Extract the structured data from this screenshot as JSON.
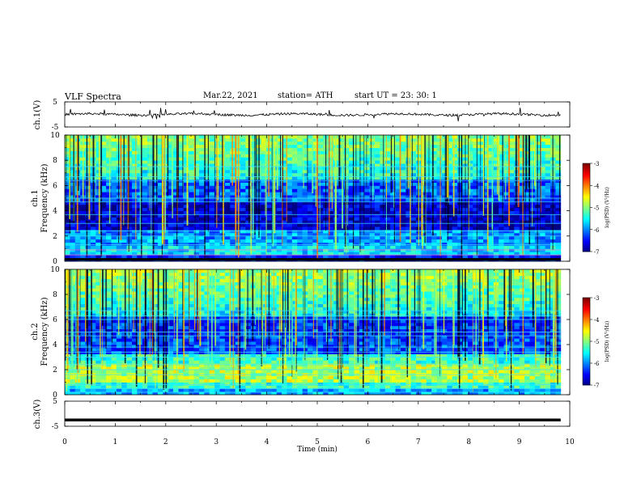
{
  "header": {
    "title": "VLF  Spectra",
    "date": "Mar.22, 2021",
    "station": "station= ATH",
    "start": "start  UT  =    23: 30: 1"
  },
  "chart_data": [
    {
      "type": "line",
      "name": "ch1-waveform",
      "ylabel": "ch.1(V)",
      "ylim": [
        -5,
        5
      ],
      "yticks": [
        "5",
        "-5"
      ],
      "xlim": [
        0,
        10
      ],
      "description_level": "signal near 0 V with spiky noise"
    },
    {
      "type": "heatmap",
      "name": "ch1-spectrogram",
      "ylabel": "ch.1\nFrequency  (kHz)",
      "ylim": [
        0,
        10
      ],
      "yticks": [
        "0",
        "2",
        "4",
        "6",
        "8",
        "10"
      ],
      "xlim": [
        0,
        10
      ],
      "colorbar": {
        "label": "log(PSD) (V²/Hz)",
        "range": [
          -7,
          -3
        ],
        "ticks": [
          "-3",
          "-4",
          "-5",
          "-6",
          "-7"
        ]
      }
    },
    {
      "type": "heatmap",
      "name": "ch2-spectrogram",
      "ylabel": "ch.2\nFrequency  (kHz)",
      "ylim": [
        0,
        10
      ],
      "yticks": [
        "0",
        "2",
        "4",
        "6",
        "8",
        "10"
      ],
      "xlim": [
        0,
        10
      ],
      "colorbar": {
        "label": "log(PSD) (V²/Hz)",
        "range": [
          -7,
          -3
        ],
        "ticks": [
          "-3",
          "-4",
          "-5",
          "-6",
          "-7"
        ]
      }
    },
    {
      "type": "line",
      "name": "ch3-waveform",
      "ylabel": "ch.3(V)",
      "ylim": [
        -5,
        5
      ],
      "yticks": [
        "5",
        "-5"
      ],
      "xlim": [
        0,
        10
      ],
      "xlabel": "Time  (min)",
      "xticks": [
        "0",
        "1",
        "2",
        "3",
        "4",
        "5",
        "6",
        "7",
        "8",
        "9",
        "10"
      ],
      "constant_level": -2.5
    }
  ],
  "colors": {
    "spectro_low": "#000080",
    "spectro_mid": "#00e5ff",
    "spectro_high": "#ff0000",
    "frame": "#000000"
  }
}
